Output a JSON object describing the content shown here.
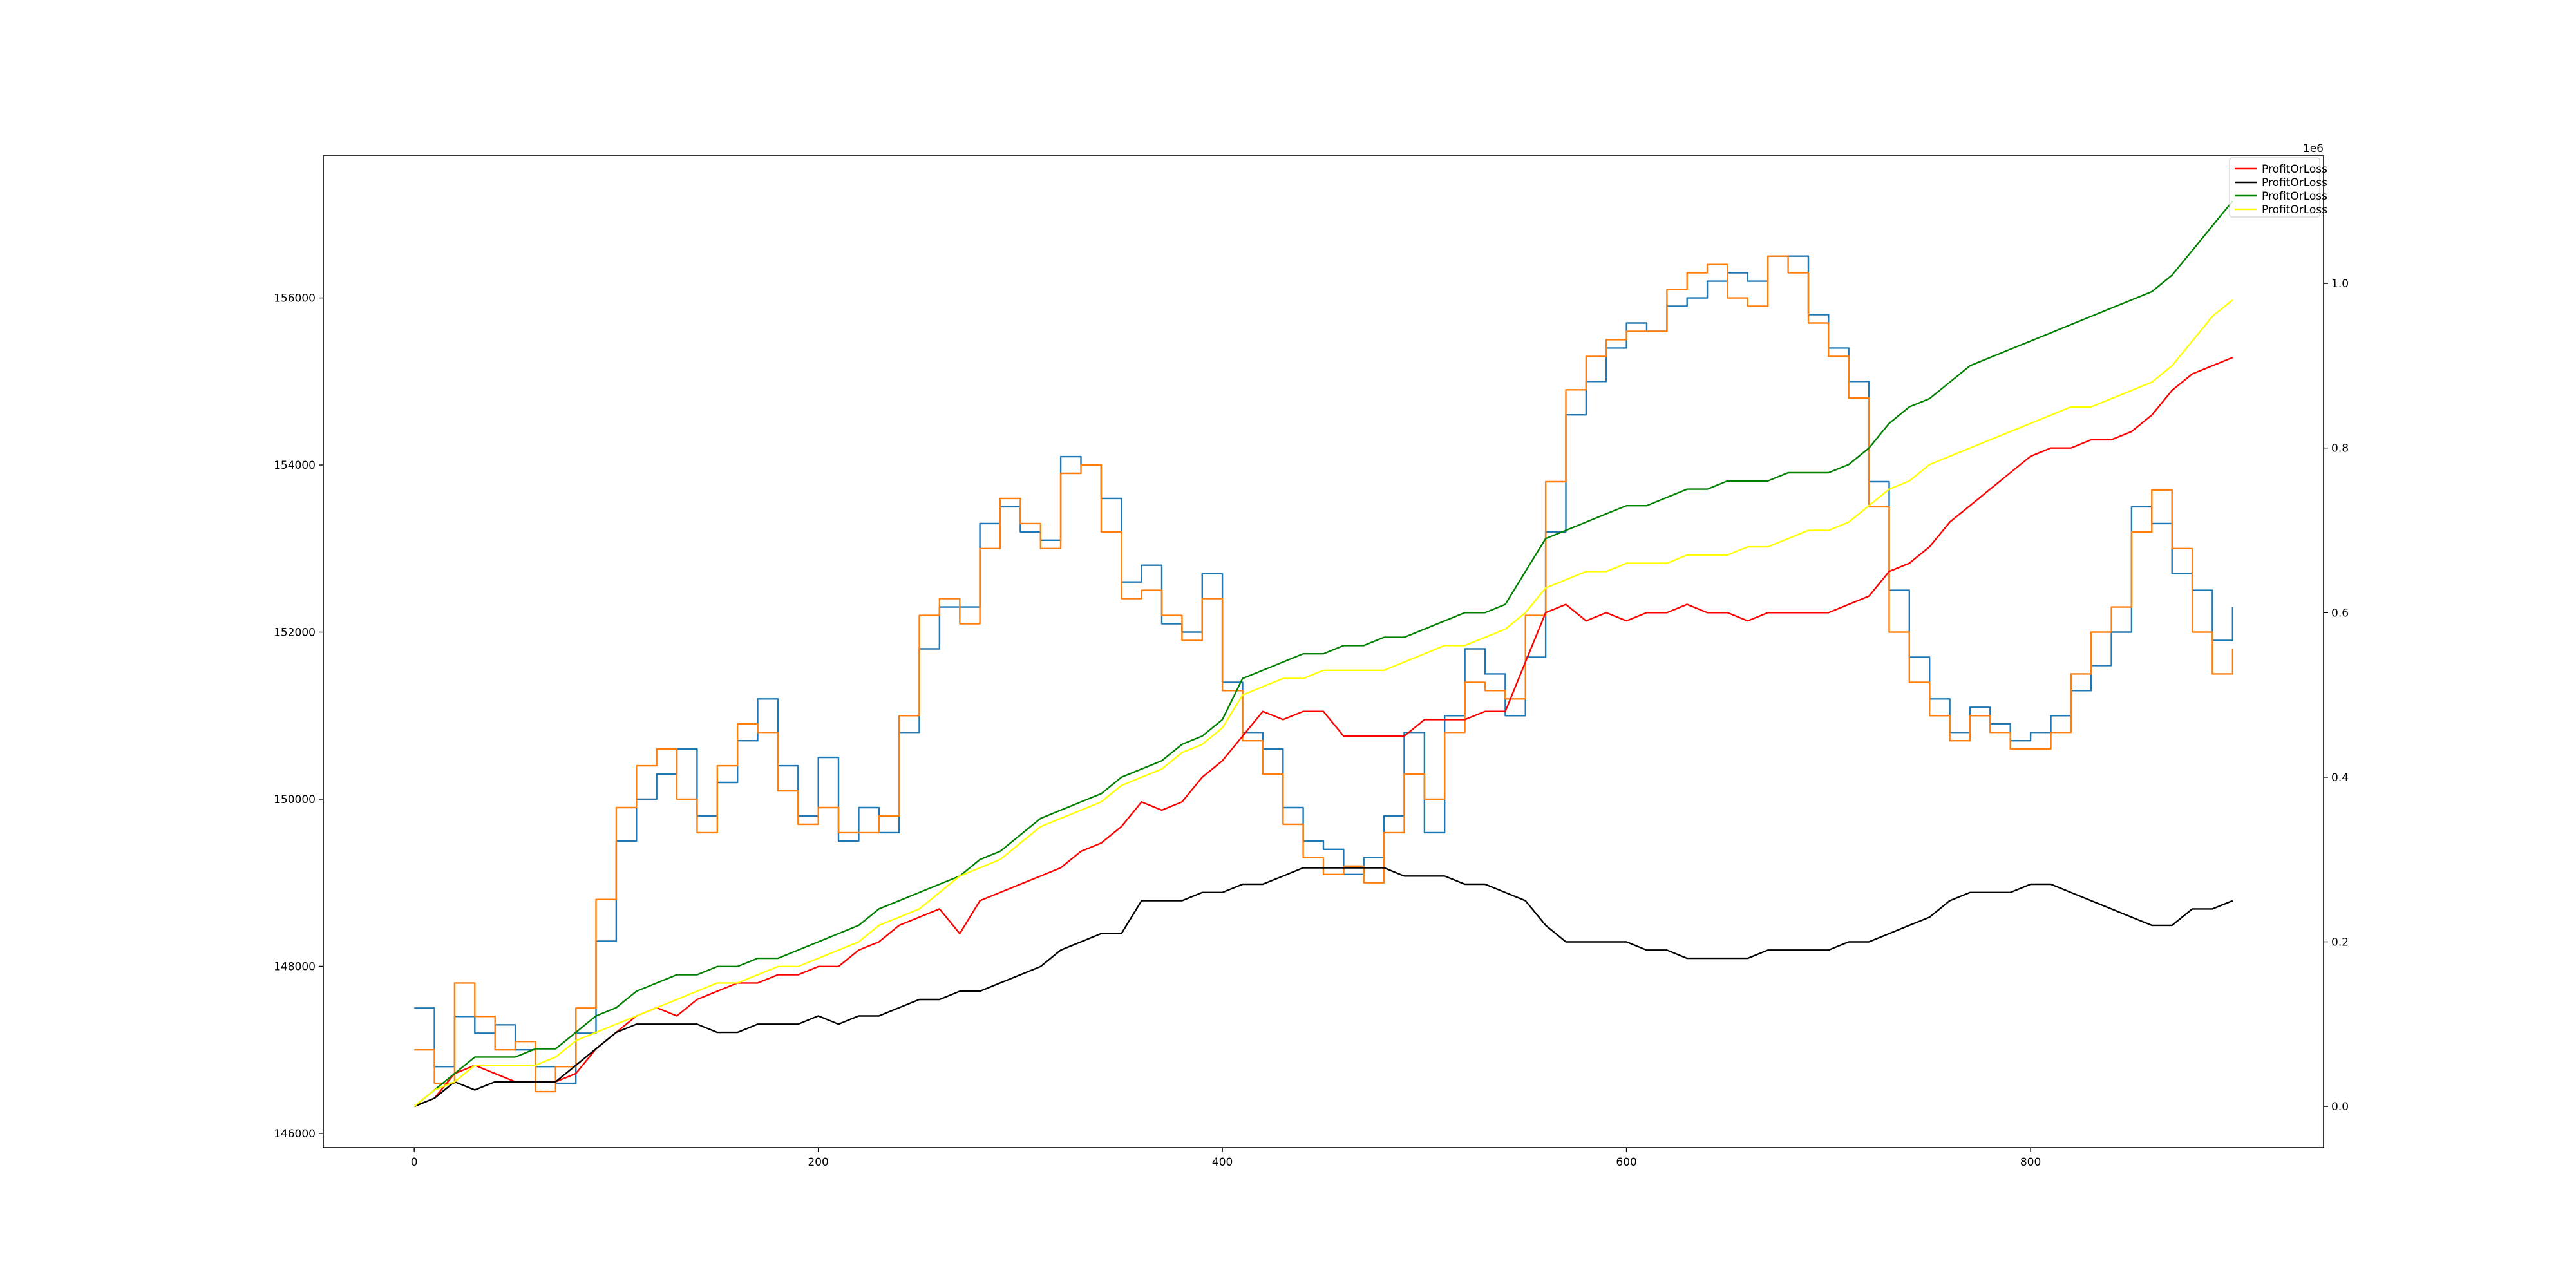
{
  "chart_data": {
    "type": "line",
    "title": "",
    "xlabel": "",
    "ylabel_left": "",
    "ylabel_right": "",
    "xlim": [
      -45,
      945
    ],
    "x_ticks": [
      0,
      200,
      400,
      600,
      800
    ],
    "left_axis": {
      "ylim": [
        145830,
        157700
      ],
      "ticks": [
        146000,
        148000,
        150000,
        152000,
        154000,
        156000
      ],
      "tick_labels": [
        "146000",
        "148000",
        "150000",
        "152000",
        "154000",
        "156000"
      ]
    },
    "right_axis": {
      "ylim": [
        -0.05,
        1.155
      ],
      "ticks": [
        0.0,
        0.2,
        0.4,
        0.6,
        0.8,
        1.0
      ],
      "tick_labels": [
        "0.0",
        "0.2",
        "0.4",
        "0.6",
        "0.8",
        "1.0"
      ],
      "offset_text": "1e6"
    },
    "grid": false,
    "legend_position": "top-right",
    "legend": [
      {
        "label": "ProfitOrLoss",
        "color": "#ff0000"
      },
      {
        "label": "ProfitOrLoss",
        "color": "#000000"
      },
      {
        "label": "ProfitOrLoss",
        "color": "#008000"
      },
      {
        "label": "ProfitOrLoss",
        "color": "#ffff00"
      }
    ],
    "series": [
      {
        "axis": "left",
        "color": "#1f77b4",
        "step": true,
        "x": [
          0,
          10,
          20,
          30,
          40,
          50,
          60,
          70,
          80,
          90,
          100,
          110,
          120,
          130,
          140,
          150,
          160,
          170,
          180,
          190,
          200,
          210,
          220,
          230,
          240,
          250,
          260,
          270,
          280,
          290,
          300,
          310,
          320,
          330,
          340,
          350,
          360,
          370,
          380,
          390,
          400,
          410,
          420,
          430,
          440,
          450,
          460,
          470,
          480,
          490,
          500,
          510,
          520,
          530,
          540,
          550,
          560,
          570,
          580,
          590,
          600,
          610,
          620,
          630,
          640,
          650,
          660,
          670,
          680,
          690,
          700,
          710,
          720,
          730,
          740,
          750,
          760,
          770,
          780,
          790,
          800,
          810,
          820,
          830,
          840,
          850,
          860,
          870,
          880,
          890,
          900
        ],
        "y": [
          147500,
          146800,
          147400,
          147200,
          147300,
          147000,
          146800,
          146600,
          147200,
          148300,
          149500,
          150000,
          150300,
          150600,
          149800,
          150200,
          150700,
          151200,
          150400,
          149800,
          150500,
          149500,
          149900,
          149600,
          150800,
          151800,
          152300,
          152300,
          153300,
          153500,
          153200,
          153100,
          154100,
          154000,
          153600,
          152600,
          152800,
          152100,
          152000,
          152700,
          151400,
          150800,
          150600,
          149900,
          149500,
          149400,
          149100,
          149300,
          149800,
          150800,
          149600,
          151000,
          151800,
          151500,
          151000,
          151700,
          153200,
          154600,
          155000,
          155400,
          155700,
          155600,
          155900,
          156000,
          156200,
          156300,
          156200,
          156500,
          156500,
          155800,
          155400,
          155000,
          153800,
          152500,
          151700,
          151200,
          150800,
          151100,
          150900,
          150700,
          150800,
          151000,
          151300,
          151600,
          152000,
          153500,
          153300,
          152700,
          152500,
          151900,
          152300
        ]
      },
      {
        "axis": "left",
        "color": "#ff7f0e",
        "step": true,
        "x": [
          0,
          10,
          20,
          30,
          40,
          50,
          60,
          70,
          80,
          90,
          100,
          110,
          120,
          130,
          140,
          150,
          160,
          170,
          180,
          190,
          200,
          210,
          220,
          230,
          240,
          250,
          260,
          270,
          280,
          290,
          300,
          310,
          320,
          330,
          340,
          350,
          360,
          370,
          380,
          390,
          400,
          410,
          420,
          430,
          440,
          450,
          460,
          470,
          480,
          490,
          500,
          510,
          520,
          530,
          540,
          550,
          560,
          570,
          580,
          590,
          600,
          610,
          620,
          630,
          640,
          650,
          660,
          670,
          680,
          690,
          700,
          710,
          720,
          730,
          740,
          750,
          760,
          770,
          780,
          790,
          800,
          810,
          820,
          830,
          840,
          850,
          860,
          870,
          880,
          890,
          900
        ],
        "y": [
          147000,
          146600,
          147800,
          147400,
          147000,
          147100,
          146500,
          146800,
          147500,
          148800,
          149900,
          150400,
          150600,
          150000,
          149600,
          150400,
          150900,
          150800,
          150100,
          149700,
          149900,
          149600,
          149600,
          149800,
          151000,
          152200,
          152400,
          152100,
          153000,
          153600,
          153300,
          153000,
          153900,
          154000,
          153200,
          152400,
          152500,
          152200,
          151900,
          152400,
          151300,
          150700,
          150300,
          149700,
          149300,
          149100,
          149200,
          149000,
          149600,
          150300,
          150000,
          150800,
          151400,
          151300,
          151200,
          152200,
          153800,
          154900,
          155300,
          155500,
          155600,
          155600,
          156100,
          156300,
          156400,
          156000,
          155900,
          156500,
          156300,
          155700,
          155300,
          154800,
          153500,
          152000,
          151400,
          151000,
          150700,
          151000,
          150800,
          150600,
          150600,
          150800,
          151500,
          152000,
          152300,
          153200,
          153700,
          153000,
          152000,
          151500,
          151800
        ]
      },
      {
        "axis": "right",
        "color": "#ff0000",
        "x": [
          0,
          10,
          20,
          30,
          40,
          50,
          60,
          70,
          80,
          90,
          100,
          110,
          120,
          130,
          140,
          150,
          160,
          170,
          180,
          190,
          200,
          210,
          220,
          230,
          240,
          250,
          260,
          270,
          280,
          290,
          300,
          310,
          320,
          330,
          340,
          350,
          360,
          370,
          380,
          390,
          400,
          410,
          420,
          430,
          440,
          450,
          460,
          470,
          480,
          490,
          500,
          510,
          520,
          530,
          540,
          550,
          560,
          570,
          580,
          590,
          600,
          610,
          620,
          630,
          640,
          650,
          660,
          670,
          680,
          690,
          700,
          710,
          720,
          730,
          740,
          750,
          760,
          770,
          780,
          790,
          800,
          810,
          820,
          830,
          840,
          850,
          860,
          870,
          880,
          890,
          900
        ],
        "y": [
          0.0,
          0.01,
          0.04,
          0.05,
          0.04,
          0.03,
          0.03,
          0.03,
          0.04,
          0.07,
          0.09,
          0.11,
          0.12,
          0.11,
          0.13,
          0.14,
          0.15,
          0.15,
          0.16,
          0.16,
          0.17,
          0.17,
          0.19,
          0.2,
          0.22,
          0.23,
          0.24,
          0.21,
          0.25,
          0.26,
          0.27,
          0.28,
          0.29,
          0.31,
          0.32,
          0.34,
          0.37,
          0.36,
          0.37,
          0.4,
          0.42,
          0.45,
          0.48,
          0.47,
          0.48,
          0.48,
          0.45,
          0.45,
          0.45,
          0.45,
          0.47,
          0.47,
          0.47,
          0.48,
          0.48,
          0.54,
          0.6,
          0.61,
          0.59,
          0.6,
          0.59,
          0.6,
          0.6,
          0.61,
          0.6,
          0.6,
          0.59,
          0.6,
          0.6,
          0.6,
          0.6,
          0.61,
          0.62,
          0.65,
          0.66,
          0.68,
          0.71,
          0.73,
          0.75,
          0.77,
          0.79,
          0.8,
          0.8,
          0.81,
          0.81,
          0.82,
          0.84,
          0.87,
          0.89,
          0.9,
          0.91
        ]
      },
      {
        "axis": "right",
        "color": "#000000",
        "x": [
          0,
          10,
          20,
          30,
          40,
          50,
          60,
          70,
          80,
          90,
          100,
          110,
          120,
          130,
          140,
          150,
          160,
          170,
          180,
          190,
          200,
          210,
          220,
          230,
          240,
          250,
          260,
          270,
          280,
          290,
          300,
          310,
          320,
          330,
          340,
          350,
          360,
          370,
          380,
          390,
          400,
          410,
          420,
          430,
          440,
          450,
          460,
          470,
          480,
          490,
          500,
          510,
          520,
          530,
          540,
          550,
          560,
          570,
          580,
          590,
          600,
          610,
          620,
          630,
          640,
          650,
          660,
          670,
          680,
          690,
          700,
          710,
          720,
          730,
          740,
          750,
          760,
          770,
          780,
          790,
          800,
          810,
          820,
          830,
          840,
          850,
          860,
          870,
          880,
          890,
          900
        ],
        "y": [
          0.0,
          0.01,
          0.03,
          0.02,
          0.03,
          0.03,
          0.03,
          0.03,
          0.05,
          0.07,
          0.09,
          0.1,
          0.1,
          0.1,
          0.1,
          0.09,
          0.09,
          0.1,
          0.1,
          0.1,
          0.11,
          0.1,
          0.11,
          0.11,
          0.12,
          0.13,
          0.13,
          0.14,
          0.14,
          0.15,
          0.16,
          0.17,
          0.19,
          0.2,
          0.21,
          0.21,
          0.25,
          0.25,
          0.25,
          0.26,
          0.26,
          0.27,
          0.27,
          0.28,
          0.29,
          0.29,
          0.29,
          0.29,
          0.29,
          0.28,
          0.28,
          0.28,
          0.27,
          0.27,
          0.26,
          0.25,
          0.22,
          0.2,
          0.2,
          0.2,
          0.2,
          0.19,
          0.19,
          0.18,
          0.18,
          0.18,
          0.18,
          0.19,
          0.19,
          0.19,
          0.19,
          0.2,
          0.2,
          0.21,
          0.22,
          0.23,
          0.25,
          0.26,
          0.26,
          0.26,
          0.27,
          0.27,
          0.26,
          0.25,
          0.24,
          0.23,
          0.22,
          0.22,
          0.24,
          0.24,
          0.25
        ]
      },
      {
        "axis": "right",
        "color": "#008000",
        "x": [
          0,
          10,
          20,
          30,
          40,
          50,
          60,
          70,
          80,
          90,
          100,
          110,
          120,
          130,
          140,
          150,
          160,
          170,
          180,
          190,
          200,
          210,
          220,
          230,
          240,
          250,
          260,
          270,
          280,
          290,
          300,
          310,
          320,
          330,
          340,
          350,
          360,
          370,
          380,
          390,
          400,
          410,
          420,
          430,
          440,
          450,
          460,
          470,
          480,
          490,
          500,
          510,
          520,
          530,
          540,
          550,
          560,
          570,
          580,
          590,
          600,
          610,
          620,
          630,
          640,
          650,
          660,
          670,
          680,
          690,
          700,
          710,
          720,
          730,
          740,
          750,
          760,
          770,
          780,
          790,
          800,
          810,
          820,
          830,
          840,
          850,
          860,
          870,
          880,
          890,
          900
        ],
        "y": [
          0.0,
          0.02,
          0.04,
          0.06,
          0.06,
          0.06,
          0.07,
          0.07,
          0.09,
          0.11,
          0.12,
          0.14,
          0.15,
          0.16,
          0.16,
          0.17,
          0.17,
          0.18,
          0.18,
          0.19,
          0.2,
          0.21,
          0.22,
          0.24,
          0.25,
          0.26,
          0.27,
          0.28,
          0.3,
          0.31,
          0.33,
          0.35,
          0.36,
          0.37,
          0.38,
          0.4,
          0.41,
          0.42,
          0.44,
          0.45,
          0.47,
          0.52,
          0.53,
          0.54,
          0.55,
          0.55,
          0.56,
          0.56,
          0.57,
          0.57,
          0.58,
          0.59,
          0.6,
          0.6,
          0.61,
          0.65,
          0.69,
          0.7,
          0.71,
          0.72,
          0.73,
          0.73,
          0.74,
          0.75,
          0.75,
          0.76,
          0.76,
          0.76,
          0.77,
          0.77,
          0.77,
          0.78,
          0.8,
          0.83,
          0.85,
          0.86,
          0.88,
          0.9,
          0.91,
          0.92,
          0.93,
          0.94,
          0.95,
          0.96,
          0.97,
          0.98,
          0.99,
          1.01,
          1.04,
          1.07,
          1.1
        ]
      },
      {
        "axis": "right",
        "color": "#ffff00",
        "x": [
          0,
          10,
          20,
          30,
          40,
          50,
          60,
          70,
          80,
          90,
          100,
          110,
          120,
          130,
          140,
          150,
          160,
          170,
          180,
          190,
          200,
          210,
          220,
          230,
          240,
          250,
          260,
          270,
          280,
          290,
          300,
          310,
          320,
          330,
          340,
          350,
          360,
          370,
          380,
          390,
          400,
          410,
          420,
          430,
          440,
          450,
          460,
          470,
          480,
          490,
          500,
          510,
          520,
          530,
          540,
          550,
          560,
          570,
          580,
          590,
          600,
          610,
          620,
          630,
          640,
          650,
          660,
          670,
          680,
          690,
          700,
          710,
          720,
          730,
          740,
          750,
          760,
          770,
          780,
          790,
          800,
          810,
          820,
          830,
          840,
          850,
          860,
          870,
          880,
          890,
          900
        ],
        "y": [
          0.0,
          0.02,
          0.03,
          0.05,
          0.05,
          0.05,
          0.05,
          0.06,
          0.08,
          0.09,
          0.1,
          0.11,
          0.12,
          0.13,
          0.14,
          0.15,
          0.15,
          0.16,
          0.17,
          0.17,
          0.18,
          0.19,
          0.2,
          0.22,
          0.23,
          0.24,
          0.26,
          0.28,
          0.29,
          0.3,
          0.32,
          0.34,
          0.35,
          0.36,
          0.37,
          0.39,
          0.4,
          0.41,
          0.43,
          0.44,
          0.46,
          0.5,
          0.51,
          0.52,
          0.52,
          0.53,
          0.53,
          0.53,
          0.53,
          0.54,
          0.55,
          0.56,
          0.56,
          0.57,
          0.58,
          0.6,
          0.63,
          0.64,
          0.65,
          0.65,
          0.66,
          0.66,
          0.66,
          0.67,
          0.67,
          0.67,
          0.68,
          0.68,
          0.69,
          0.7,
          0.7,
          0.71,
          0.73,
          0.75,
          0.76,
          0.78,
          0.79,
          0.8,
          0.81,
          0.82,
          0.83,
          0.84,
          0.85,
          0.85,
          0.86,
          0.87,
          0.88,
          0.9,
          0.93,
          0.96,
          0.98
        ]
      }
    ]
  }
}
